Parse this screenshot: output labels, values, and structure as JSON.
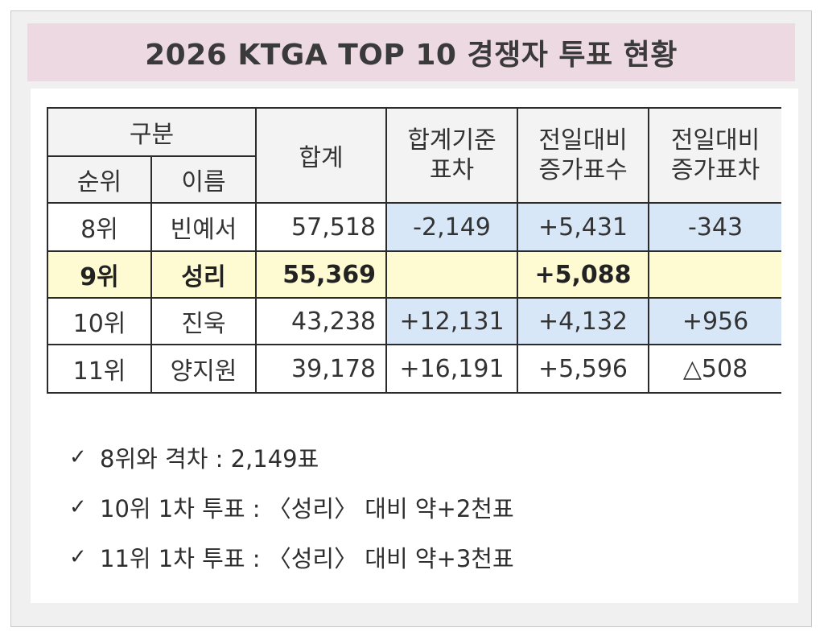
{
  "title": "2026 KTGA TOP 10 경쟁자 투표 현황",
  "table": {
    "headers": {
      "group": "구분",
      "rank": "순위",
      "name": "이름",
      "total": "합계",
      "diff_line1": "합계기준",
      "diff_line2": "표차",
      "inc_line1": "전일대비",
      "inc_line2": "증가표수",
      "incdiff_line1": "전일대비",
      "incdiff_line2": "증가표차"
    },
    "rows": [
      {
        "rank": "8위",
        "name": "빈예서",
        "total": "57,518",
        "diff": "-2,149",
        "inc": "+5,431",
        "incdiff": "-343"
      },
      {
        "rank": "9위",
        "name": "성리",
        "total": "55,369",
        "diff": "",
        "inc": "+5,088",
        "incdiff": ""
      },
      {
        "rank": "10위",
        "name": "진욱",
        "total": "43,238",
        "diff": "+12,131",
        "inc": "+4,132",
        "incdiff": "+956"
      },
      {
        "rank": "11위",
        "name": "양지원",
        "total": "39,178",
        "diff": "+16,191",
        "inc": "+5,596",
        "incdiff": "△508"
      }
    ]
  },
  "notes": [
    {
      "mark": "✓",
      "text": "8위와 격차 : 2,149표"
    },
    {
      "mark": "✓",
      "text": "10위 1차 투표 : 〈성리〉 대비 약+2천표"
    },
    {
      "mark": "✓",
      "text": "11위 1차 투표 : 〈성리〉 대비 약+3천표"
    }
  ],
  "colors": {
    "title_bg": "#ecd9e1",
    "highlight_row": "#fefbd2",
    "blue_cell": "#d8e7f7",
    "header_bg": "#f3f3f3"
  }
}
